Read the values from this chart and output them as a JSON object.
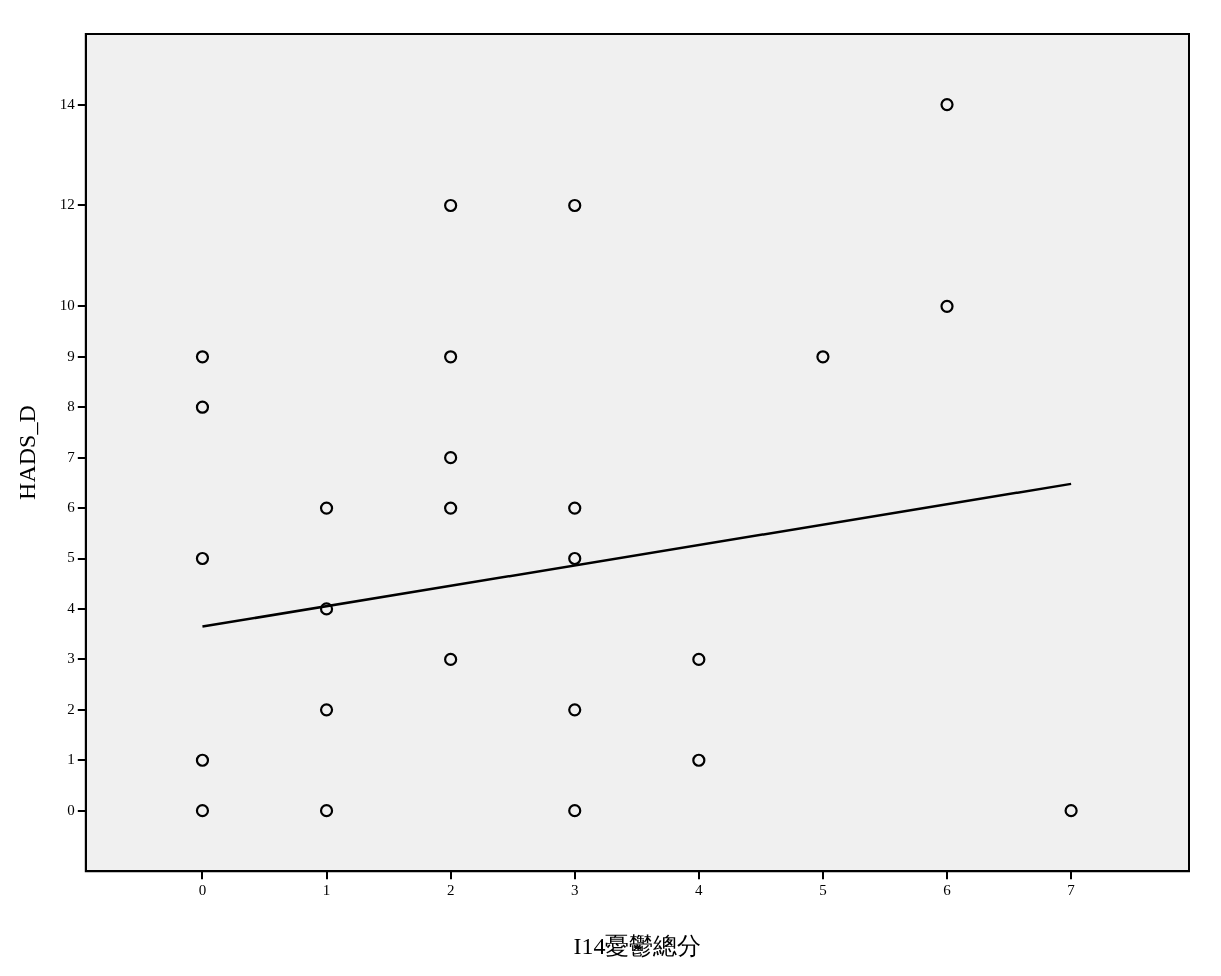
{
  "chart_data": {
    "type": "scatter",
    "xlabel": "I14憂鬱總分",
    "ylabel": "HADS_D",
    "xlim": [
      -0.94,
      7.95
    ],
    "xticks": [
      0,
      1,
      2,
      3,
      4,
      5,
      6,
      7
    ],
    "ylim": [
      -1.2,
      15.4
    ],
    "yticks": [
      0,
      1,
      2,
      3,
      4,
      5,
      6,
      7,
      8,
      9,
      10,
      12,
      14
    ],
    "grid": false,
    "legend": false,
    "marker": "circle",
    "series": [
      {
        "color": "#000000",
        "x": [
          0,
          0,
          0,
          0,
          0,
          1,
          1,
          1,
          1,
          2,
          2,
          2,
          2,
          2,
          3,
          3,
          3,
          3,
          3,
          4,
          4,
          5,
          6,
          6,
          7
        ],
        "values": [
          9,
          8,
          5,
          1,
          0,
          6,
          4,
          2,
          0,
          12,
          9,
          7,
          6,
          3,
          12,
          6,
          5,
          2,
          0,
          3,
          1,
          9,
          14,
          10,
          0
        ]
      },
      {
        "type": "line",
        "color": "#000000",
        "marker": "none",
        "x": [
          0,
          7
        ],
        "values": [
          3.65,
          6.48
        ]
      }
    ]
  }
}
